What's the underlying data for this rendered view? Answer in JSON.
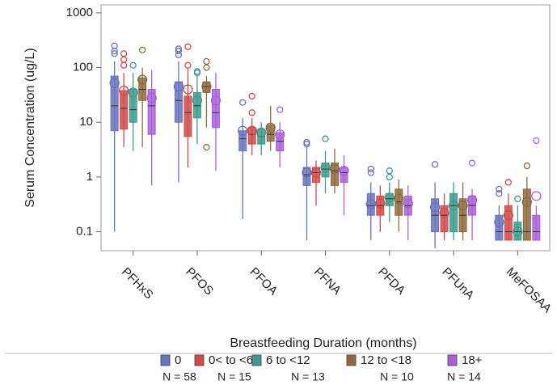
{
  "chart_data": {
    "type": "box",
    "y_label": "Serum Concentration (ug/L)",
    "legend_title": "Breastfeeding Duration (months)",
    "categories": [
      "PFHxS",
      "PFOS",
      "PFOA",
      "PFNA",
      "PFDA",
      "PFUnA",
      "MeFOSAA"
    ],
    "log_scale": true,
    "ylim": [
      0.045,
      1400
    ],
    "yticks": [
      1000,
      100,
      10,
      1,
      0.1
    ],
    "legend_position": "bottom",
    "series": [
      {
        "name": "0",
        "n_label": "N = 58",
        "color": "#6673bd",
        "min": [
          0.1,
          0.8,
          0.17,
          0.07,
          0.07,
          0.05,
          0.07
        ],
        "q1": [
          7,
          10,
          3,
          0.7,
          0.2,
          0.1,
          0.07
        ],
        "median": [
          20,
          25,
          5,
          1.1,
          0.3,
          0.2,
          0.1
        ],
        "q3": [
          70,
          55,
          7,
          1.5,
          0.5,
          0.4,
          0.2
        ],
        "max": [
          130,
          130,
          12,
          3.5,
          0.8,
          0.8,
          0.3
        ],
        "mean": [
          52,
          45,
          7,
          1.2,
          0.32,
          0.28,
          0.15
        ],
        "outliers": [
          [
            180,
            200,
            250
          ],
          [
            170,
            200,
            220
          ],
          [
            23
          ],
          [
            4,
            4.3
          ],
          [
            1.2,
            1.4
          ],
          [
            1.7
          ],
          [
            0.5,
            0.6
          ]
        ]
      },
      {
        "name": "0< to <6",
        "n_label": "N = 15",
        "color": "#d04a4a",
        "min": [
          3.5,
          1.5,
          2.5,
          0.3,
          0.1,
          0.07,
          0.07
        ],
        "q1": [
          7.5,
          5.5,
          4,
          0.8,
          0.2,
          0.1,
          0.07
        ],
        "median": [
          18,
          15,
          6,
          1.2,
          0.3,
          0.2,
          0.1
        ],
        "q3": [
          38,
          30,
          8,
          1.5,
          0.45,
          0.3,
          0.3
        ],
        "max": [
          80,
          100,
          12,
          2,
          0.7,
          0.5,
          0.5
        ],
        "mean": [
          38,
          40,
          7,
          1.2,
          0.33,
          0.22,
          0.2
        ],
        "outliers": [
          [
            110,
            140,
            180
          ],
          [
            110,
            240
          ],
          [
            15,
            30
          ],
          [],
          [],
          [],
          [
            0.8
          ]
        ]
      },
      {
        "name": "6 to <12",
        "n_label": "N = 13",
        "color": "#3c9a8d",
        "min": [
          3,
          4,
          2.5,
          0.5,
          0.15,
          0.07,
          0.07
        ],
        "q1": [
          10,
          12,
          4,
          1,
          0.3,
          0.1,
          0.07
        ],
        "median": [
          17,
          20,
          5.5,
          1.4,
          0.4,
          0.3,
          0.1
        ],
        "q3": [
          40,
          35,
          7.5,
          1.8,
          0.5,
          0.5,
          0.15
        ],
        "max": [
          80,
          70,
          10,
          3,
          0.8,
          0.8,
          0.3
        ],
        "mean": [
          35,
          25,
          6.5,
          1.5,
          0.42,
          0.3,
          0.1
        ],
        "outliers": [
          [
            110
          ],
          [
            80,
            85
          ],
          [],
          [
            5
          ],
          [
            1,
            1.3
          ],
          [],
          [
            0.4
          ]
        ]
      },
      {
        "name": "12 to <18",
        "n_label": "N = 10",
        "color": "#8d6a3e",
        "min": [
          3.5,
          8,
          3,
          0.5,
          0.1,
          0.07,
          0.07
        ],
        "q1": [
          25,
          35,
          4.5,
          0.7,
          0.2,
          0.1,
          0.07
        ],
        "median": [
          40,
          45,
          6,
          1.3,
          0.35,
          0.2,
          0.1
        ],
        "q3": [
          65,
          55,
          9,
          1.8,
          0.6,
          0.4,
          0.6
        ],
        "max": [
          100,
          70,
          20,
          3.3,
          0.9,
          0.8,
          1
        ],
        "mean": [
          60,
          45,
          8,
          1.4,
          0.4,
          0.3,
          0.35
        ],
        "outliers": [
          [
            210
          ],
          [
            3.5,
            100,
            130
          ],
          [],
          [],
          [],
          [],
          [
            1.6
          ]
        ]
      },
      {
        "name": "18+",
        "n_label": "N = 14",
        "color": "#a860d8",
        "min": [
          0.7,
          1.3,
          1.5,
          0.2,
          0.07,
          0.07,
          0.07
        ],
        "q1": [
          6,
          8,
          3,
          0.8,
          0.2,
          0.2,
          0.07
        ],
        "median": [
          20,
          15,
          4.5,
          1.2,
          0.3,
          0.3,
          0.1
        ],
        "q3": [
          40,
          40,
          6.5,
          1.5,
          0.45,
          0.45,
          0.2
        ],
        "max": [
          90,
          80,
          10,
          2.5,
          0.7,
          0.6,
          0.3
        ],
        "mean": [
          28,
          25,
          6,
          1.3,
          0.33,
          0.38,
          0.45
        ],
        "outliers": [
          [],
          [],
          [
            17
          ],
          [],
          [],
          [
            1.8
          ],
          [
            4.6
          ]
        ]
      }
    ]
  }
}
